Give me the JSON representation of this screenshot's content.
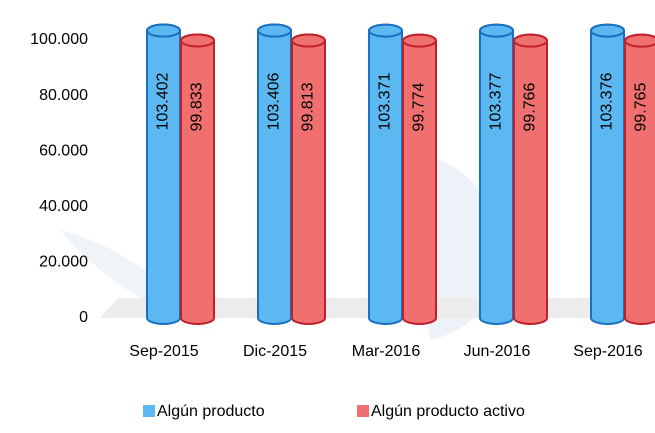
{
  "chart_data": {
    "type": "bar",
    "categories": [
      "Sep-2015",
      "Dic-2015",
      "Mar-2016",
      "Jun-2016",
      "Sep-2016"
    ],
    "series": [
      {
        "name": "Algún producto",
        "color": "#5bb8f0",
        "values": [
          103402,
          103406,
          103371,
          103377,
          103376
        ],
        "value_labels": [
          "103.402",
          "103.406",
          "103.371",
          "103.377",
          "103.376"
        ]
      },
      {
        "name": "Algún producto activo",
        "color": "#f07070",
        "values": [
          99833,
          99813,
          99774,
          99766,
          99765
        ],
        "value_labels": [
          "99.833",
          "99.813",
          "99.774",
          "99.766",
          "99.765"
        ]
      }
    ],
    "ylim": [
      0,
      100000
    ],
    "yticks": [
      0,
      {
        "value": 20000,
        "label": "20.000"
      },
      {
        "value": 40000,
        "label": "40.000"
      },
      {
        "value": 60000,
        "label": "60.000"
      },
      {
        "value": 80000,
        "label": "80.000"
      },
      {
        "value": 100000,
        "label": "100.000"
      }
    ],
    "grid": false,
    "legend": "bottom"
  }
}
